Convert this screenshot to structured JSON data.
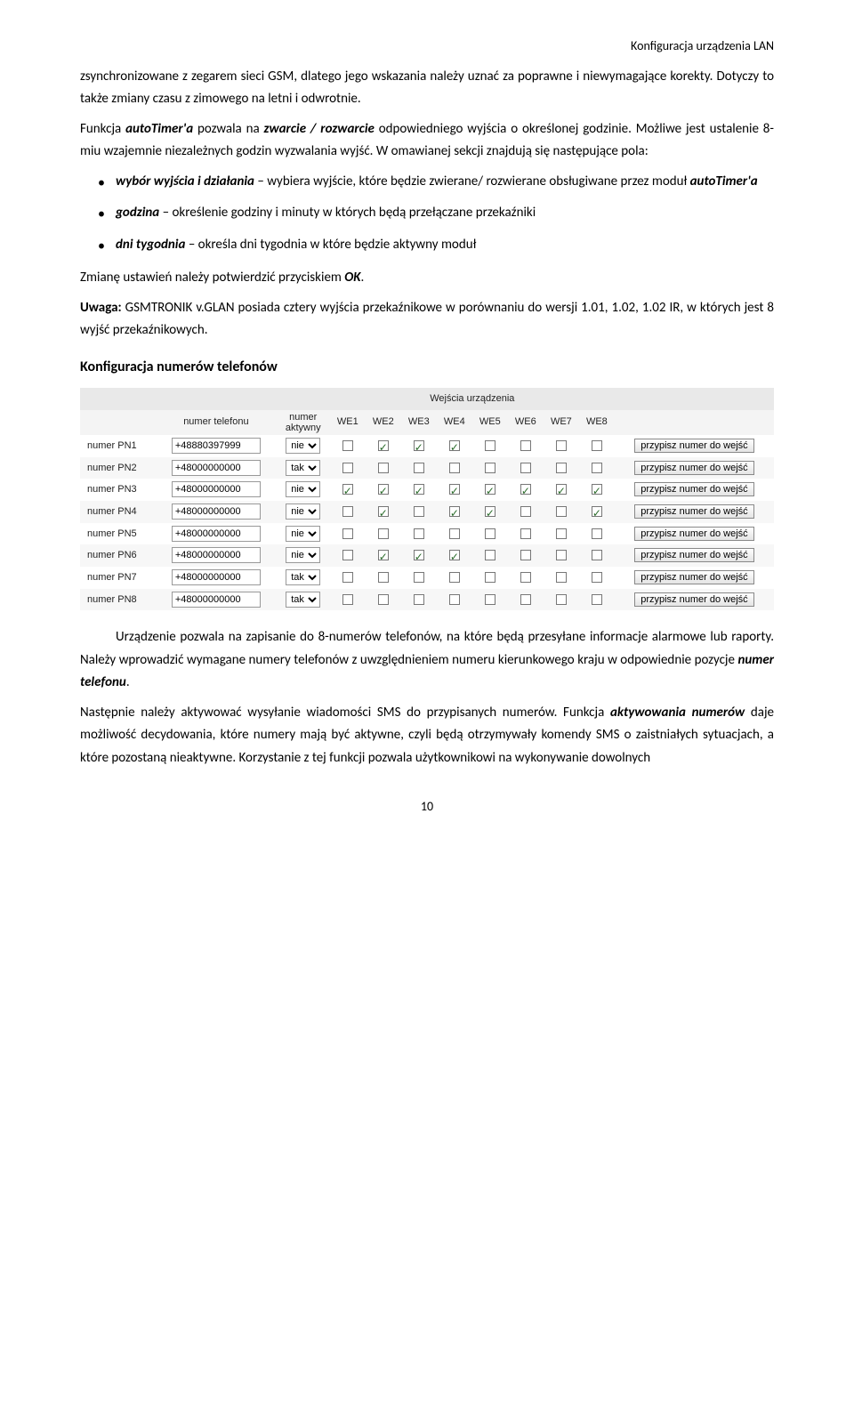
{
  "header": {
    "right": "Konfiguracja urządzenia LAN"
  },
  "para1": {
    "t1": "zsynchronizowane z zegarem sieci GSM, dlatego jego wskazania należy uznać za poprawne i niewymagające korekty. Dotyczy to także zmiany czasu z zimowego na letni i odwrotnie."
  },
  "para2": {
    "t1": "Funkcja ",
    "b1": "autoTimer'a",
    "t2": " pozwala na ",
    "b2": "zwarcie / rozwarcie",
    "t3": " odpowiedniego wyjścia o określonej godzinie. Możliwe jest ustalenie 8-miu wzajemnie niezależnych godzin wyzwalania wyjść. W omawianej sekcji znajdują się następujące pola:"
  },
  "bullets": {
    "b1a": "wybór wyjścia i działania",
    "b1b": " – wybiera wyjście, które będzie zwierane/ rozwierane obsługiwane przez moduł ",
    "b1c": "autoTimer'a",
    "b2a": "godzina",
    "b2b": " – określenie godziny i minuty w których będą przełączane przekaźniki",
    "b3a": "dni tygodnia",
    "b3b": " – określa dni tygodnia w które będzie aktywny moduł"
  },
  "para3": {
    "t1": "Zmianę ustawień należy potwierdzić przyciskiem ",
    "b1": "OK",
    "t2": "."
  },
  "para4": {
    "b1": "Uwaga:",
    "t1": " GSMTRONIK v.GLAN posiada cztery wyjścia przekaźnikowe w porównaniu do wersji 1.01, 1.02, 1.02 IR, w których jest 8 wyjść przekaźnikowych."
  },
  "section_head": "Konfiguracja numerów telefonów",
  "table": {
    "title": "Wejścia urządzenia",
    "headers": {
      "phone": "numer telefonu",
      "active_l1": "numer",
      "active_l2": "aktywny",
      "we": [
        "WE1",
        "WE2",
        "WE3",
        "WE4",
        "WE5",
        "WE6",
        "WE7",
        "WE8"
      ],
      "assign": "przypisz numer do wejść"
    },
    "active_options": [
      "nie",
      "tak"
    ],
    "rows": [
      {
        "label": "numer PN1",
        "phone": "+48880397999",
        "active": "nie",
        "we": [
          false,
          true,
          true,
          true,
          false,
          false,
          false,
          false
        ]
      },
      {
        "label": "numer PN2",
        "phone": "+48000000000",
        "active": "tak",
        "we": [
          false,
          false,
          false,
          false,
          false,
          false,
          false,
          false
        ]
      },
      {
        "label": "numer PN3",
        "phone": "+48000000000",
        "active": "nie",
        "we": [
          true,
          true,
          true,
          true,
          true,
          true,
          true,
          true
        ]
      },
      {
        "label": "numer PN4",
        "phone": "+48000000000",
        "active": "nie",
        "we": [
          false,
          true,
          false,
          true,
          true,
          false,
          false,
          true
        ]
      },
      {
        "label": "numer PN5",
        "phone": "+48000000000",
        "active": "nie",
        "we": [
          false,
          false,
          false,
          false,
          false,
          false,
          false,
          false
        ]
      },
      {
        "label": "numer PN6",
        "phone": "+48000000000",
        "active": "nie",
        "we": [
          false,
          true,
          true,
          true,
          false,
          false,
          false,
          false
        ]
      },
      {
        "label": "numer PN7",
        "phone": "+48000000000",
        "active": "tak",
        "we": [
          false,
          false,
          false,
          false,
          false,
          false,
          false,
          false
        ]
      },
      {
        "label": "numer PN8",
        "phone": "+48000000000",
        "active": "tak",
        "we": [
          false,
          false,
          false,
          false,
          false,
          false,
          false,
          false
        ]
      }
    ]
  },
  "para5": {
    "t1": "Urządzenie pozwala na zapisanie do 8-numerów telefonów, na które będą przesyłane informacje alarmowe lub raporty. Należy wprowadzić wymagane numery telefonów z uwzględnieniem numeru kierunkowego kraju w odpowiednie pozycje ",
    "b1": "numer telefonu",
    "t2": "."
  },
  "para6": {
    "t1": "Następnie należy aktywować wysyłanie wiadomości SMS do przypisanych numerów. Funkcja ",
    "b1": "aktywowania numerów",
    "t2": " daje możliwość decydowania, które numery mają być aktywne, czyli będą otrzymywały komendy SMS o zaistniałych sytuacjach, a które pozostaną nieaktywne. Korzystanie z tej funkcji pozwala użytkownikowi na wykonywanie dowolnych"
  },
  "page_number": "10"
}
